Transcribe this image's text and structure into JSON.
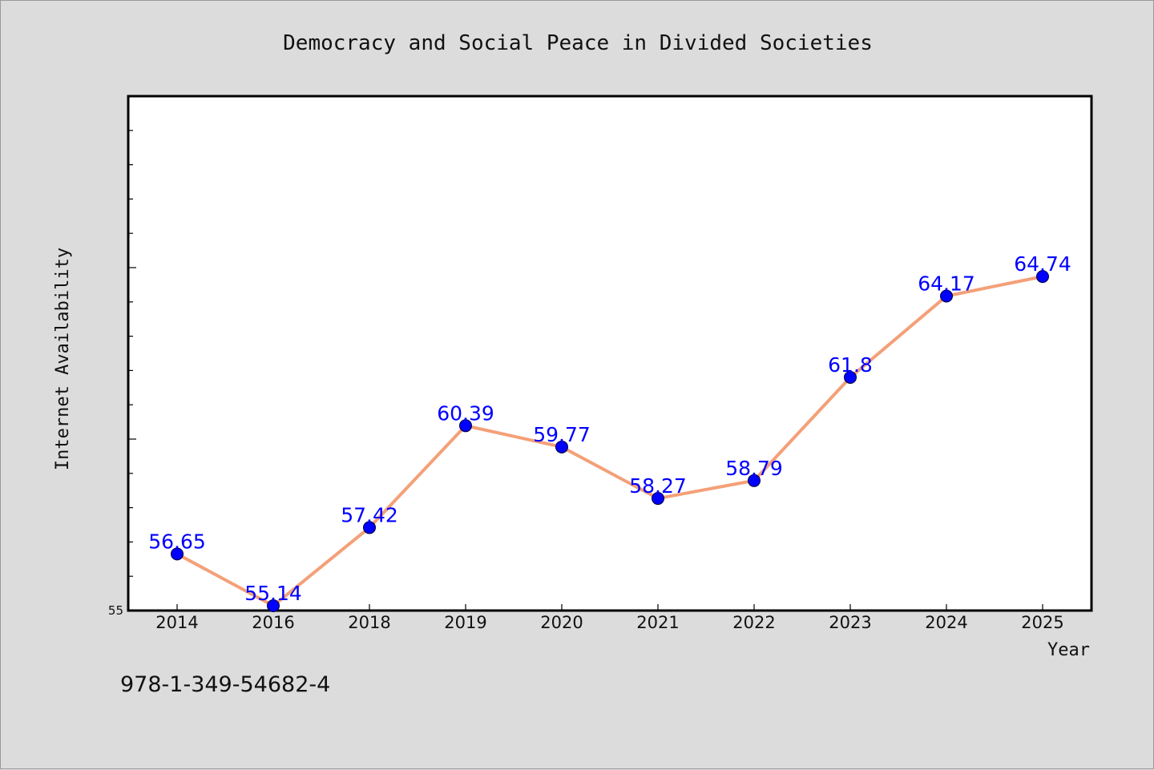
{
  "chart_data": {
    "type": "line",
    "title": "Democracy and Social Peace in Divided Societies",
    "xlabel": "Year",
    "ylabel": "Internet Availability",
    "categories": [
      "2014",
      "2016",
      "2018",
      "2019",
      "2020",
      "2021",
      "2022",
      "2023",
      "2024",
      "2025"
    ],
    "series": [
      {
        "values": [
          56.65,
          55.14,
          57.42,
          60.39,
          59.77,
          58.27,
          58.79,
          61.8,
          64.17,
          64.74
        ],
        "labels": [
          "56.65",
          "55.14",
          "57.42",
          "60.39",
          "59.77",
          "58.27",
          "58.79",
          "61.8",
          "64.17",
          "64.74"
        ]
      }
    ],
    "ylim": [
      55,
      70
    ],
    "yticks_labeled": [
      "55"
    ],
    "grid": false,
    "legend": "none",
    "colors": {
      "line": "#f4a078",
      "marker": "#0000ff",
      "data_label": "#0000ff",
      "plot_background": "#ffffff",
      "page_background": "#dcdcdc"
    }
  },
  "footer": {
    "isbn": "978-1-349-54682-4"
  }
}
